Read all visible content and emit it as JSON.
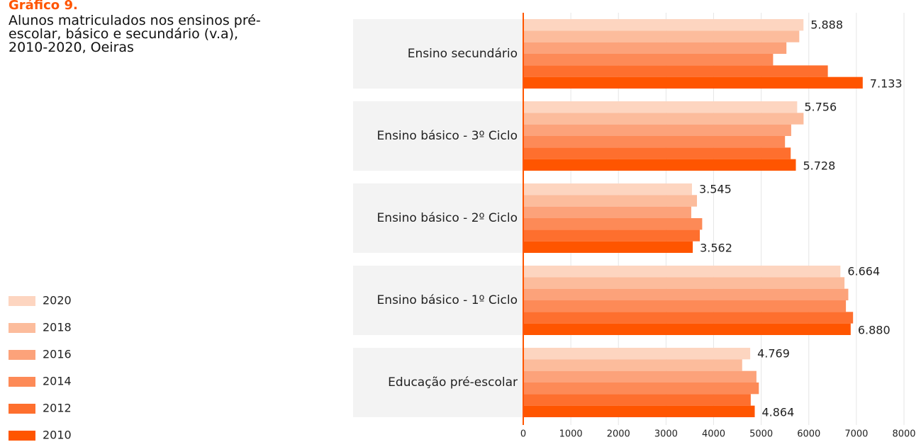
{
  "chart_data": {
    "type": "bar",
    "orientation": "horizontal",
    "title": "Gráfico 9.",
    "subtitle": "Alunos matriculados nos ensinos pré-escolar, básico e secundário (v.a), 2010-2020, Oeiras",
    "categories": [
      "Ensino secundário",
      "Ensino básico - 3º Ciclo",
      "Ensino básico - 2º Ciclo",
      "Ensino básico - 1º Ciclo",
      "Educação pré-escolar"
    ],
    "series": [
      {
        "name": "2020",
        "color": "#fdd5c0",
        "values": [
          5888,
          5756,
          3545,
          6664,
          4769
        ],
        "value_labels": [
          "5.888",
          "5.756",
          "3.545",
          "6.664",
          "4.769"
        ]
      },
      {
        "name": "2018",
        "color": "#fcbc9c",
        "values": [
          5800,
          5890,
          3650,
          6750,
          4600
        ]
      },
      {
        "name": "2016",
        "color": "#fca27a",
        "values": [
          5530,
          5630,
          3530,
          6830,
          4900
        ]
      },
      {
        "name": "2014",
        "color": "#fd8a57",
        "values": [
          5250,
          5500,
          3760,
          6780,
          4950
        ]
      },
      {
        "name": "2012",
        "color": "#fe6f2e",
        "values": [
          6400,
          5620,
          3710,
          6930,
          4780
        ]
      },
      {
        "name": "2010",
        "color": "#ff5500",
        "values": [
          7133,
          5728,
          3562,
          6880,
          4864
        ],
        "value_labels": [
          "7.133",
          "5.728",
          "3.562",
          "6.880",
          "4.864"
        ]
      }
    ],
    "xlim": [
      0,
      8000
    ],
    "xticks": [
      0,
      1000,
      2000,
      3000,
      4000,
      5000,
      6000,
      7000,
      8000
    ],
    "grid": true,
    "legend": "bottom-left"
  }
}
